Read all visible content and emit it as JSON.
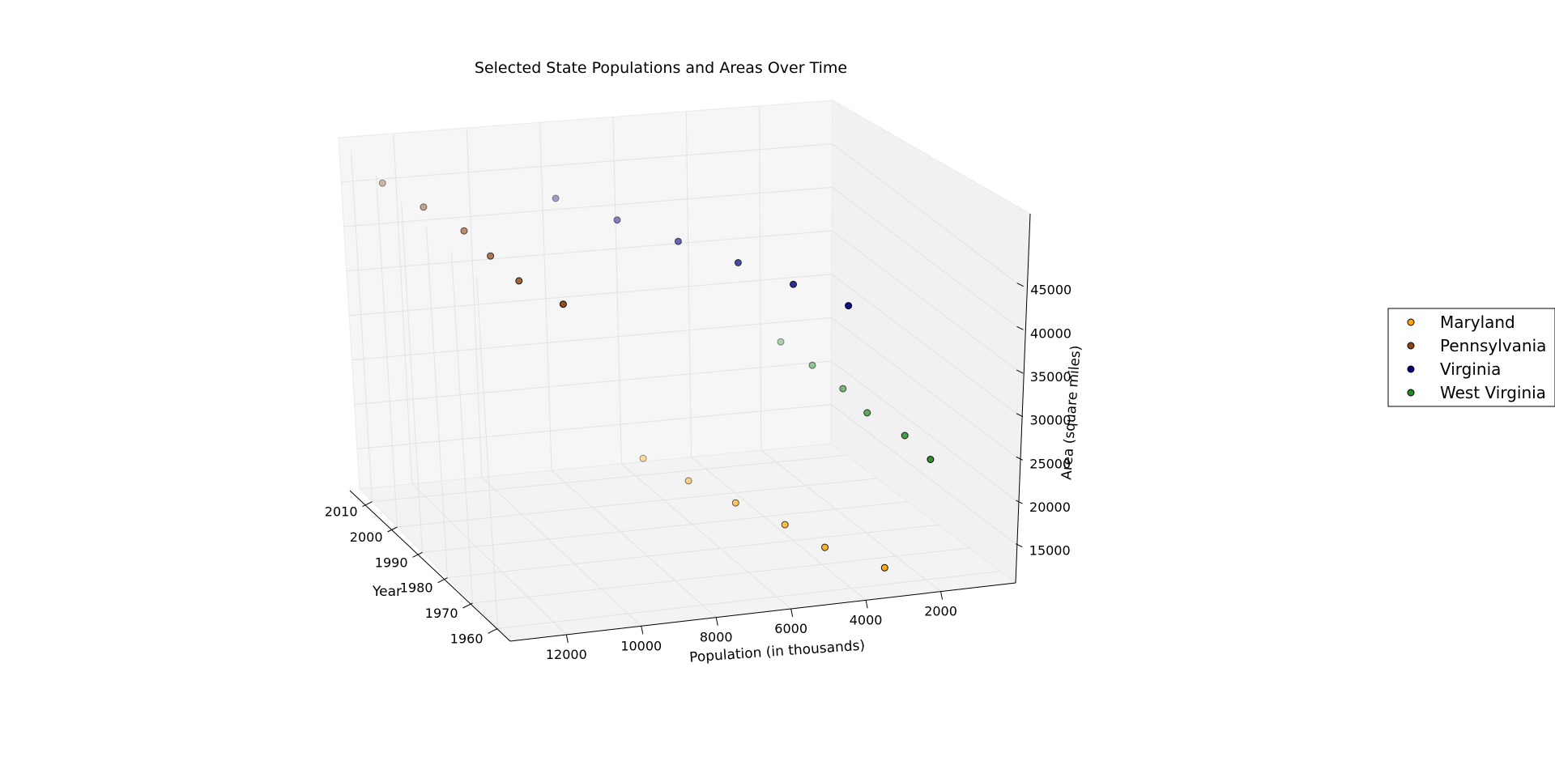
{
  "chart_data": {
    "type": "scatter3d",
    "title": "Selected State Populations and Areas Over Time",
    "xlabel": "Year",
    "ylabel": "Population (in thousands)",
    "zlabel": "Area (square miles)",
    "x_ticks": [
      "1960",
      "1970",
      "1980",
      "1990",
      "2000",
      "2010"
    ],
    "y_ticks": [
      "12000",
      "10000",
      "8000",
      "6000",
      "4000",
      "2000"
    ],
    "z_ticks": [
      "15000",
      "20000",
      "25000",
      "30000",
      "35000",
      "40000",
      "45000"
    ],
    "legend_position": "right",
    "grid": true,
    "series": [
      {
        "name": "Maryland",
        "color": "#ffa500",
        "points": [
          {
            "x": 1960,
            "y": 3101,
            "z": 12407
          },
          {
            "x": 1970,
            "y": 3922,
            "z": 12407
          },
          {
            "x": 1980,
            "y": 4217,
            "z": 12407
          },
          {
            "x": 1990,
            "y": 4781,
            "z": 12407
          },
          {
            "x": 2000,
            "y": 5296,
            "z": 12407
          },
          {
            "x": 2010,
            "y": 5774,
            "z": 12407
          }
        ]
      },
      {
        "name": "Pennsylvania",
        "color": "#8b4513",
        "points": [
          {
            "x": 1960,
            "y": 11319,
            "z": 46055
          },
          {
            "x": 1970,
            "y": 11794,
            "z": 46055
          },
          {
            "x": 1980,
            "y": 11864,
            "z": 46055
          },
          {
            "x": 1990,
            "y": 11882,
            "z": 46055
          },
          {
            "x": 2000,
            "y": 12281,
            "z": 46055
          },
          {
            "x": 2010,
            "y": 12702,
            "z": 46055
          }
        ]
      },
      {
        "name": "Virginia",
        "color": "#000080",
        "points": [
          {
            "x": 1960,
            "y": 3967,
            "z": 42775
          },
          {
            "x": 1970,
            "y": 4648,
            "z": 42775
          },
          {
            "x": 1980,
            "y": 5347,
            "z": 42775
          },
          {
            "x": 1990,
            "y": 6187,
            "z": 42775
          },
          {
            "x": 2000,
            "y": 7078,
            "z": 42775
          },
          {
            "x": 2010,
            "y": 8001,
            "z": 42775
          }
        ]
      },
      {
        "name": "West Virginia",
        "color": "#228b22",
        "points": [
          {
            "x": 1960,
            "y": 1860,
            "z": 24230
          },
          {
            "x": 1970,
            "y": 1744,
            "z": 24230
          },
          {
            "x": 1980,
            "y": 1950,
            "z": 24230
          },
          {
            "x": 1990,
            "y": 1793,
            "z": 24230
          },
          {
            "x": 2000,
            "y": 1808,
            "z": 24230
          },
          {
            "x": 2010,
            "y": 1853,
            "z": 24230
          }
        ]
      }
    ]
  }
}
